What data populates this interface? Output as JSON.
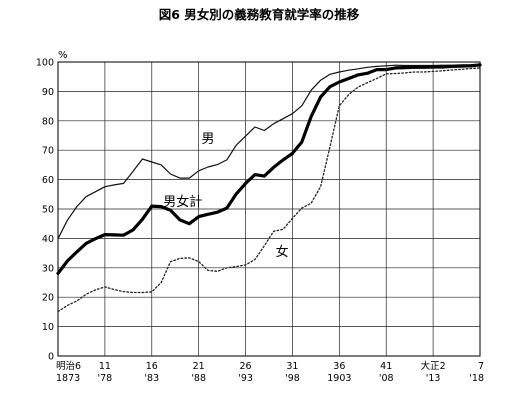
{
  "chart_data": {
    "type": "line",
    "title": "図6 男女別の義務教育就学率の推移",
    "y_unit": "%",
    "ylim": [
      0,
      100
    ],
    "y_ticks": [
      0,
      10,
      20,
      30,
      40,
      50,
      60,
      70,
      80,
      90,
      100
    ],
    "xlim": [
      1873,
      1918
    ],
    "x_ticks": [
      {
        "x": 1873,
        "top": "明治6",
        "bottom": "1873"
      },
      {
        "x": 1878,
        "top": "11",
        "bottom": "'78"
      },
      {
        "x": 1883,
        "top": "16",
        "bottom": "'83"
      },
      {
        "x": 1888,
        "top": "21",
        "bottom": "'88"
      },
      {
        "x": 1893,
        "top": "26",
        "bottom": "'93"
      },
      {
        "x": 1898,
        "top": "31",
        "bottom": "'98"
      },
      {
        "x": 1903,
        "top": "36",
        "bottom": "1903"
      },
      {
        "x": 1908,
        "top": "41",
        "bottom": "'08"
      },
      {
        "x": 1913,
        "top": "大正2",
        "bottom": "'13"
      },
      {
        "x": 1918,
        "top": "7",
        "bottom": "'18"
      }
    ],
    "grid": true,
    "series": [
      {
        "name": "男",
        "style": "thin",
        "x": [
          1873,
          1874,
          1875,
          1876,
          1877,
          1878,
          1879,
          1880,
          1881,
          1882,
          1883,
          1884,
          1885,
          1886,
          1887,
          1888,
          1889,
          1890,
          1891,
          1892,
          1893,
          1894,
          1895,
          1896,
          1897,
          1898,
          1899,
          1900,
          1901,
          1902,
          1903,
          1904,
          1905,
          1906,
          1907,
          1908,
          1909,
          1910,
          1911,
          1912,
          1913,
          1914,
          1915,
          1916,
          1917,
          1918
        ],
        "values": [
          39.9,
          46.2,
          50.8,
          54.2,
          55.9,
          57.6,
          58.2,
          58.7,
          62.8,
          67.0,
          66.0,
          65.0,
          61.9,
          60.5,
          60.5,
          63.0,
          64.3,
          65.1,
          66.7,
          71.7,
          74.8,
          77.9,
          76.7,
          79.0,
          80.7,
          82.4,
          85.1,
          90.4,
          93.8,
          95.8,
          96.6,
          97.2,
          97.7,
          98.2,
          98.5,
          98.7,
          98.9,
          98.8,
          98.8,
          98.8,
          98.8,
          98.9,
          98.9,
          99.0,
          99.0,
          99.1
        ]
      },
      {
        "name": "男女計",
        "style": "thick",
        "x": [
          1873,
          1874,
          1875,
          1876,
          1877,
          1878,
          1879,
          1880,
          1881,
          1882,
          1883,
          1884,
          1885,
          1886,
          1887,
          1888,
          1889,
          1890,
          1891,
          1892,
          1893,
          1894,
          1895,
          1896,
          1897,
          1898,
          1899,
          1900,
          1901,
          1902,
          1903,
          1904,
          1905,
          1906,
          1907,
          1908,
          1909,
          1910,
          1911,
          1912,
          1913,
          1914,
          1915,
          1916,
          1917,
          1918
        ],
        "values": [
          28.1,
          32.3,
          35.4,
          38.3,
          39.9,
          41.3,
          41.2,
          41.1,
          42.9,
          46.5,
          51.0,
          50.8,
          49.6,
          46.3,
          45.0,
          47.4,
          48.2,
          48.9,
          50.3,
          55.1,
          58.7,
          61.7,
          61.2,
          64.2,
          66.7,
          68.9,
          72.8,
          81.5,
          88.1,
          91.6,
          93.2,
          94.4,
          95.6,
          96.2,
          97.4,
          97.4,
          98.0,
          98.1,
          98.2,
          98.2,
          98.3,
          98.3,
          98.5,
          98.6,
          98.7,
          99.0
        ]
      },
      {
        "name": "女",
        "style": "dotted",
        "x": [
          1873,
          1874,
          1875,
          1876,
          1877,
          1878,
          1879,
          1880,
          1881,
          1882,
          1883,
          1884,
          1885,
          1886,
          1887,
          1888,
          1889,
          1890,
          1891,
          1892,
          1893,
          1894,
          1895,
          1896,
          1897,
          1898,
          1899,
          1900,
          1901,
          1902,
          1903,
          1904,
          1905,
          1906,
          1907,
          1908,
          1909,
          1910,
          1911,
          1912,
          1913,
          1914,
          1915,
          1916,
          1917,
          1918
        ],
        "values": [
          15.1,
          17.2,
          18.7,
          21.0,
          22.5,
          23.5,
          22.6,
          21.9,
          21.6,
          21.6,
          21.8,
          25.0,
          32.1,
          33.2,
          33.4,
          32.1,
          29.1,
          28.8,
          30.0,
          30.4,
          31.0,
          32.8,
          37.5,
          42.4,
          43.1,
          46.8,
          50.3,
          52.0,
          57.6,
          71.2,
          85.1,
          88.9,
          91.5,
          93.0,
          94.4,
          96.0,
          96.1,
          96.3,
          96.6,
          96.6,
          96.8,
          97.0,
          97.3,
          97.5,
          97.8,
          98.0
        ]
      }
    ]
  }
}
